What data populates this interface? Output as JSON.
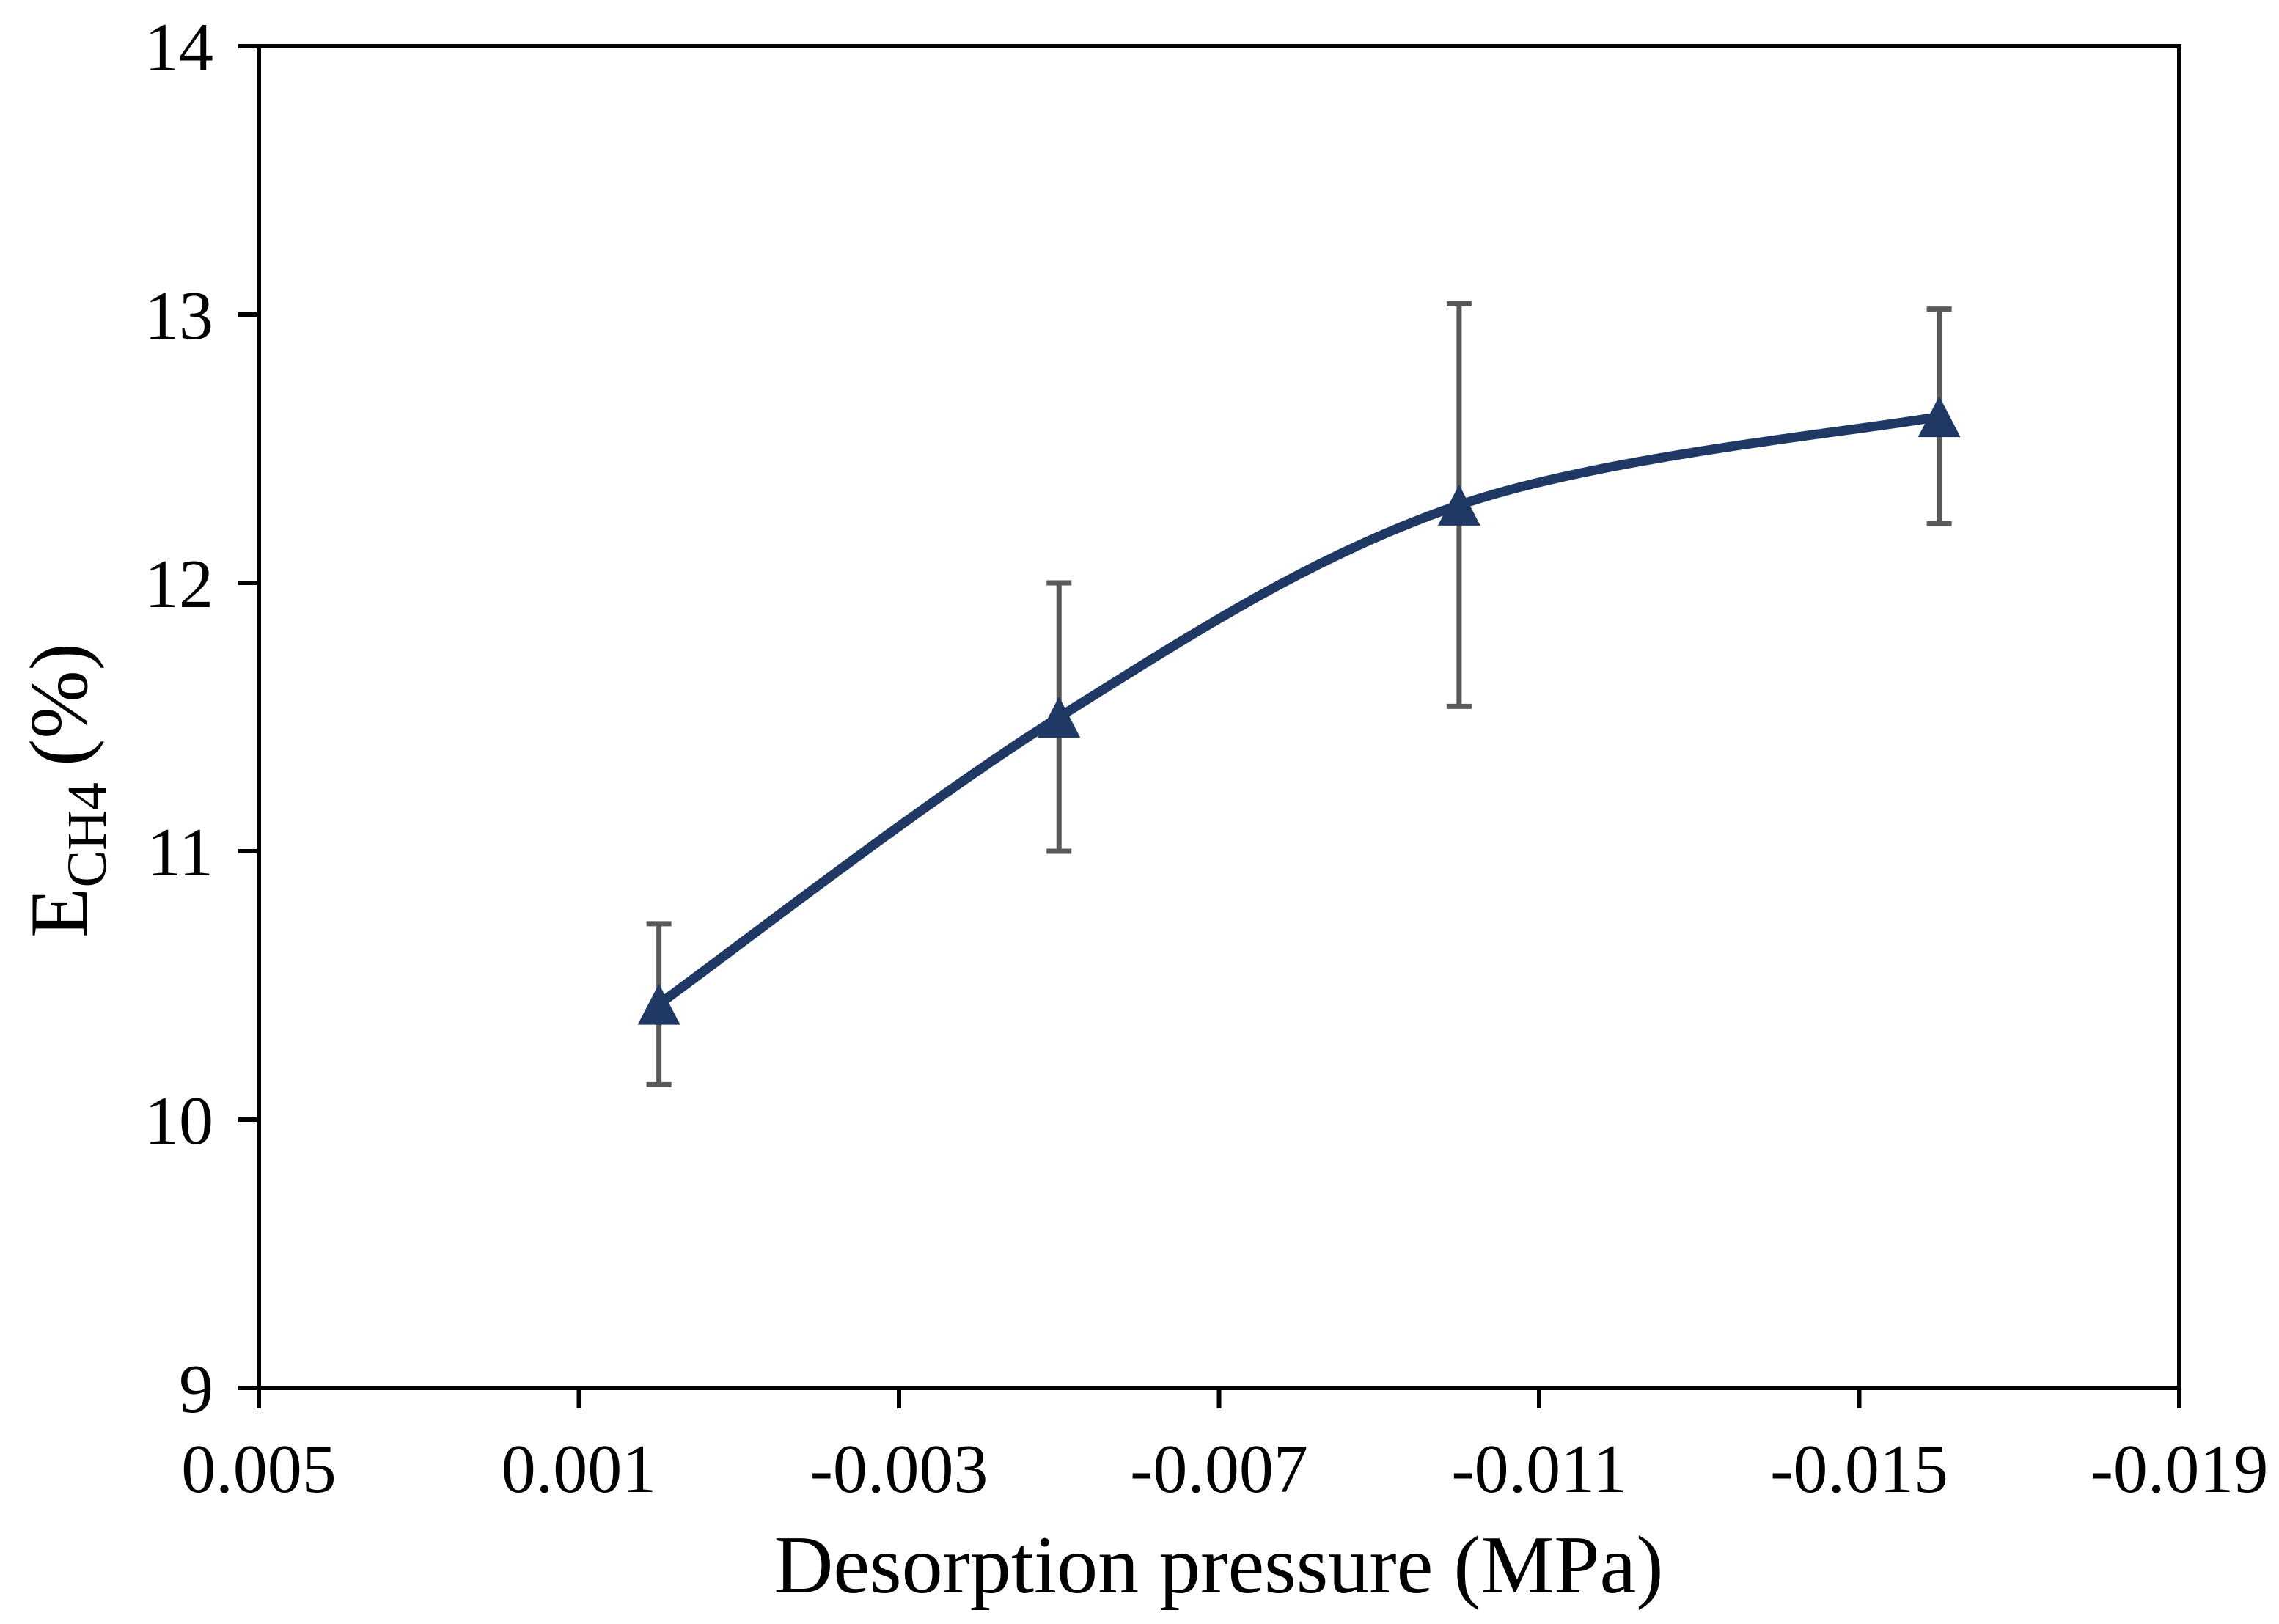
{
  "chart_data": {
    "type": "line",
    "title": "",
    "xlabel": "Desorption pressure (MPa)",
    "ylabel": {
      "base": "E",
      "sub": "CH4",
      "rest": "(%)"
    },
    "x": [
      0.0,
      -0.005,
      -0.01,
      -0.016
    ],
    "y": [
      10.43,
      11.5,
      12.29,
      12.62
    ],
    "y_err": [
      0.3,
      0.5,
      0.75,
      0.4
    ],
    "xlim": [
      0.005,
      -0.019
    ],
    "ylim": [
      9,
      14
    ],
    "x_ticks": [
      0.005,
      0.001,
      -0.003,
      -0.007,
      -0.011,
      -0.015,
      -0.019
    ],
    "x_tick_labels": [
      "0.005",
      "0.001",
      "-0.003",
      "-0.007",
      "-0.011",
      "-0.015",
      "-0.019"
    ],
    "y_ticks": [
      9,
      10,
      11,
      12,
      13,
      14
    ],
    "y_tick_labels": [
      "9",
      "10",
      "11",
      "12",
      "13",
      "14"
    ],
    "x_axis_reversed": true,
    "grid": false,
    "plot_border": true,
    "legend": false,
    "smooth_line": true,
    "marker": "filled-triangle-up",
    "line_color": "#1f3864",
    "marker_color": "#1f3864",
    "error_bar_color": "#595959",
    "axis_color": "#000000",
    "background_color": "#ffffff"
  }
}
